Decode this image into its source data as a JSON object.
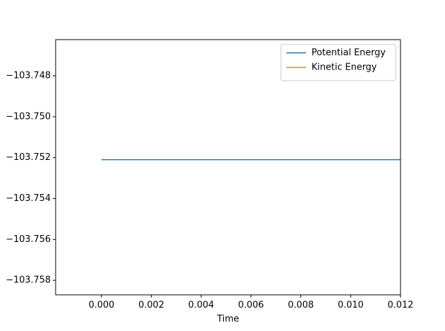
{
  "chart_data": {
    "type": "line",
    "xlabel": "Time",
    "x": [
      0,
      0.012
    ],
    "series": [
      {
        "name": "Potential Energy",
        "color": "#1f77b4",
        "values": [
          -103.7521,
          -103.7521
        ]
      },
      {
        "name": "Kinetic Energy",
        "color": "#ff7f0e",
        "values": [
          null,
          null
        ]
      }
    ],
    "xlim": [
      -0.00184,
      0.012
    ],
    "xticks": [
      {
        "value": 0,
        "label": "0.000"
      },
      0.002,
      0.004,
      0.006,
      0.008,
      {
        "value": 0.01,
        "label": "0.010"
      },
      0.012
    ],
    "ylim": [
      -103.75871,
      -103.74623
    ],
    "yticks": [
      {
        "value": -103.748,
        "label": "−103.748"
      },
      {
        "value": -103.75,
        "label": "−103.750"
      },
      {
        "value": -103.752,
        "label": "−103.752"
      },
      {
        "value": -103.754,
        "label": "−103.754"
      },
      {
        "value": -103.756,
        "label": "−103.756"
      },
      {
        "value": -103.758,
        "label": "−103.758"
      }
    ],
    "legend": "upper right"
  }
}
